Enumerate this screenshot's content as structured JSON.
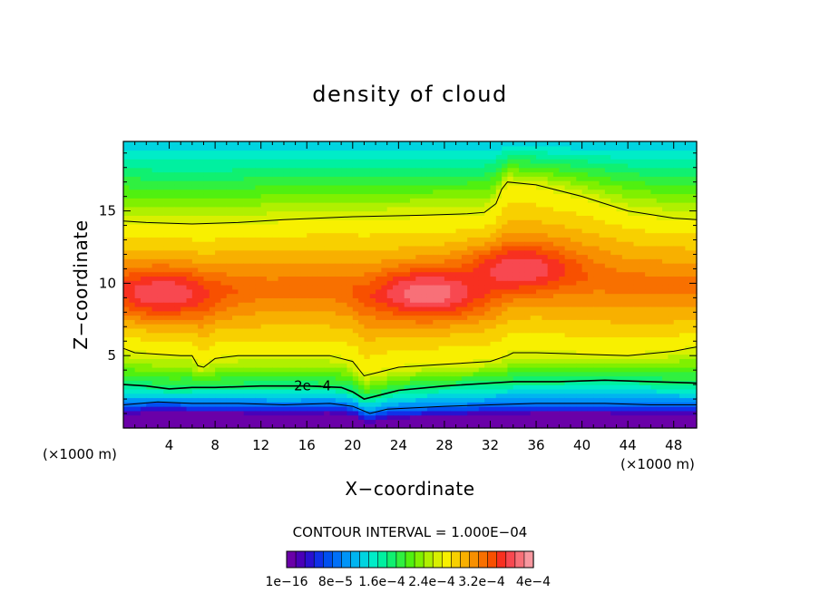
{
  "chart_data": {
    "type": "heatmap",
    "title": "density of cloud",
    "xlabel": "X−coordinate",
    "ylabel": "Z−coordinate",
    "x_unit": "(×1000 m)",
    "z_unit": "(×1000 m)",
    "xlim": [
      0,
      50
    ],
    "ylim": [
      0,
      19.8
    ],
    "x_ticks": [
      4,
      8,
      12,
      16,
      20,
      24,
      28,
      32,
      36,
      40,
      44,
      48
    ],
    "y_ticks": [
      5,
      10,
      15
    ],
    "contour_interval_text": "CONTOUR INTERVAL = 1.000E−04",
    "contour_label": "2e−4",
    "contour_label_x": 16.5,
    "contour_label_z": 2.9,
    "colorbar": {
      "min": 0,
      "max": 0.00048,
      "colors": [
        "#6a00a8",
        "#4a00b8",
        "#2a10d0",
        "#1030e8",
        "#0050f0",
        "#0070f8",
        "#0094f8",
        "#00b4f0",
        "#00d4e0",
        "#00ecc8",
        "#00f0a0",
        "#10f070",
        "#30f040",
        "#50f010",
        "#80f000",
        "#b0f000",
        "#d8f000",
        "#f8f000",
        "#f8d000",
        "#f8b000",
        "#f89000",
        "#f87000",
        "#f85000",
        "#f83020",
        "#f84850",
        "#f87078",
        "#f898a0"
      ],
      "tick_labels": [
        "1e−16",
        "8e−5",
        "1.6e−4",
        "2.4e−4",
        "3.2e−4",
        "4e−4"
      ]
    },
    "contours": [
      {
        "level": 0.0001,
        "points": [
          [
            0,
            1.6
          ],
          [
            3,
            1.8
          ],
          [
            6,
            1.7
          ],
          [
            10,
            1.7
          ],
          [
            14,
            1.6
          ],
          [
            18,
            1.7
          ],
          [
            20,
            1.5
          ],
          [
            21.5,
            1.0
          ],
          [
            23,
            1.3
          ],
          [
            28,
            1.5
          ],
          [
            32,
            1.6
          ],
          [
            36,
            1.7
          ],
          [
            38,
            1.7
          ],
          [
            42,
            1.7
          ],
          [
            46,
            1.6
          ],
          [
            50,
            1.6
          ]
        ]
      },
      {
        "level": 0.0002,
        "points": [
          [
            0,
            3.0
          ],
          [
            2,
            2.9
          ],
          [
            4,
            2.7
          ],
          [
            6,
            2.8
          ],
          [
            8,
            2.8
          ],
          [
            12,
            2.9
          ],
          [
            16,
            2.9
          ],
          [
            19,
            2.8
          ],
          [
            20,
            2.5
          ],
          [
            21,
            2.0
          ],
          [
            22.5,
            2.3
          ],
          [
            24,
            2.6
          ],
          [
            28,
            2.9
          ],
          [
            32,
            3.1
          ],
          [
            34,
            3.2
          ],
          [
            36,
            3.2
          ],
          [
            38,
            3.2
          ],
          [
            42,
            3.3
          ],
          [
            46,
            3.2
          ],
          [
            50,
            3.1
          ]
        ]
      },
      {
        "level": 0.0003,
        "points": [
          [
            0,
            5.5
          ],
          [
            1,
            5.2
          ],
          [
            3,
            5.1
          ],
          [
            5,
            5.0
          ],
          [
            6,
            5.0
          ],
          [
            6.5,
            4.3
          ],
          [
            7,
            4.2
          ],
          [
            8,
            4.8
          ],
          [
            10,
            5.0
          ],
          [
            14,
            5.0
          ],
          [
            18,
            5.0
          ],
          [
            20,
            4.6
          ],
          [
            21,
            3.6
          ],
          [
            22,
            3.8
          ],
          [
            24,
            4.2
          ],
          [
            28,
            4.4
          ],
          [
            32,
            4.6
          ],
          [
            33.5,
            5.0
          ],
          [
            34,
            5.2
          ],
          [
            36,
            5.2
          ],
          [
            40,
            5.1
          ],
          [
            44,
            5.0
          ],
          [
            48,
            5.3
          ],
          [
            50,
            5.6
          ]
        ]
      },
      {
        "level": 0.0004,
        "points": [
          [
            0,
            14.3
          ],
          [
            2,
            14.2
          ],
          [
            6,
            14.1
          ],
          [
            10,
            14.2
          ],
          [
            14,
            14.4
          ],
          [
            20,
            14.6
          ],
          [
            26,
            14.7
          ],
          [
            30,
            14.8
          ],
          [
            31.5,
            14.9
          ],
          [
            32.5,
            15.5
          ],
          [
            33,
            16.5
          ],
          [
            33.5,
            17.0
          ],
          [
            36,
            16.8
          ],
          [
            40,
            16.0
          ],
          [
            44,
            15.0
          ],
          [
            48,
            14.5
          ],
          [
            50,
            14.4
          ]
        ]
      }
    ],
    "field_key_levels": [
      {
        "z": 0.9,
        "x": [
          0,
          50
        ],
        "value": 0.0
      },
      {
        "z": 1.4,
        "x": [
          0,
          50
        ],
        "value": 4e-05
      },
      {
        "z": 2.2,
        "x": [
          0,
          50
        ],
        "value": 0.00014
      },
      {
        "z": 3.0,
        "x": [
          0,
          50
        ],
        "value": 0.0002
      },
      {
        "z": 4.5,
        "x": [
          0,
          50
        ],
        "value": 0.00027
      },
      {
        "z": 7.0,
        "x": [
          0,
          50
        ],
        "value": 0.00036
      },
      {
        "z": 10.5,
        "x": [
          0,
          50
        ],
        "value": 0.00038
      },
      {
        "z": 14.0,
        "x": [
          0,
          50
        ],
        "value": 0.0003
      },
      {
        "z": 17.0,
        "x": [
          0,
          50
        ],
        "value": 0.0002
      },
      {
        "z": 19.8,
        "x": [
          0,
          50
        ],
        "value": 0.00015
      }
    ],
    "field_hotspots": [
      {
        "x": 26.5,
        "z": 9.3,
        "value": 0.00047
      },
      {
        "x": 3.5,
        "z": 9.3,
        "value": 0.00045
      },
      {
        "x": 34.5,
        "z": 11.0,
        "value": 0.00045
      }
    ]
  }
}
